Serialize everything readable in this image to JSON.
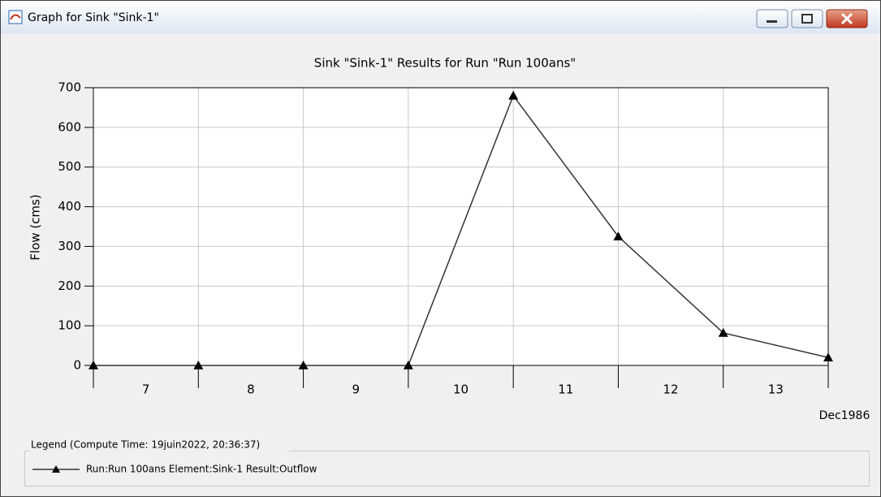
{
  "window": {
    "title": "Graph for Sink \"Sink-1\""
  },
  "chart_data": {
    "type": "line",
    "title": "Sink \"Sink-1\" Results for Run \"Run 100ans\"",
    "y_label": "Flow (cms)",
    "day_labels": [
      "7",
      "8",
      "9",
      "10",
      "11",
      "12",
      "13"
    ],
    "x_axis_label": "Dec1986",
    "series": [
      {
        "name": "Run:Run 100ans Element:Sink-1 Result:Outflow",
        "color": "#333333",
        "marker": "triangle",
        "values": [
          0,
          0,
          0,
          0,
          680,
          325,
          82,
          20
        ]
      }
    ],
    "ylim": [
      0,
      700
    ],
    "yticks": [
      0,
      100,
      200,
      300,
      400,
      500,
      600,
      700
    ],
    "grid": true
  },
  "legend": {
    "title": "Legend (Compute Time: 19juin2022, 20:36:37)"
  }
}
